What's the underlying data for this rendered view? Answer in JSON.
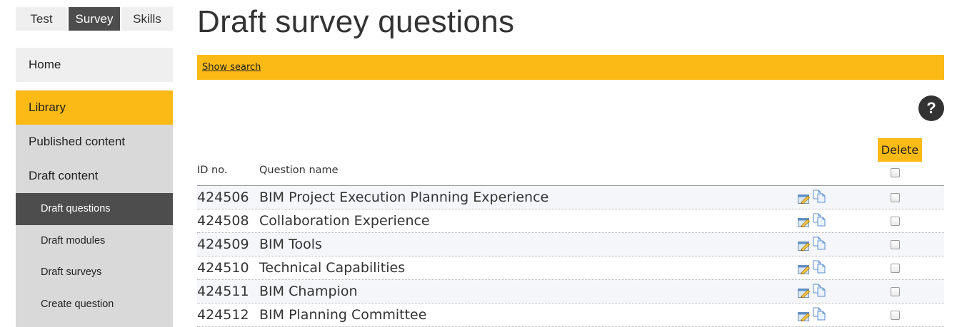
{
  "top_tabs": [
    {
      "label": "Test",
      "active": false
    },
    {
      "label": "Survey",
      "active": true
    },
    {
      "label": "Skills",
      "active": false
    }
  ],
  "sidebar": {
    "home": "Home",
    "library": "Library",
    "published": "Published content",
    "draft": "Draft content",
    "sub_items": [
      {
        "label": "Draft questions",
        "active": true
      },
      {
        "label": "Draft modules",
        "active": false
      },
      {
        "label": "Draft surveys",
        "active": false
      },
      {
        "label": "Create question",
        "active": false
      }
    ]
  },
  "main": {
    "title": "Draft survey questions",
    "search_link": "Show search",
    "help_icon": "?",
    "delete_label": "Delete",
    "columns": {
      "id": "ID no.",
      "name": "Question name"
    },
    "rows": [
      {
        "id": "424506",
        "name": "BIM Project Execution Planning Experience"
      },
      {
        "id": "424508",
        "name": "Collaboration Experience"
      },
      {
        "id": "424509",
        "name": "BIM Tools"
      },
      {
        "id": "424510",
        "name": "Technical Capabilities"
      },
      {
        "id": "424511",
        "name": "BIM Champion"
      },
      {
        "id": "424512",
        "name": "BIM Planning Committee"
      }
    ]
  },
  "colors": {
    "accent": "#fbba15",
    "dark": "#4d4d4d",
    "sidebar_light": "#efefef",
    "sidebar_sub": "#d9d9d9",
    "row_alt": "#f5f6f9"
  },
  "icons": {
    "edit": "edit-pencil-icon",
    "copy": "copy-pages-icon",
    "help": "help-icon"
  }
}
